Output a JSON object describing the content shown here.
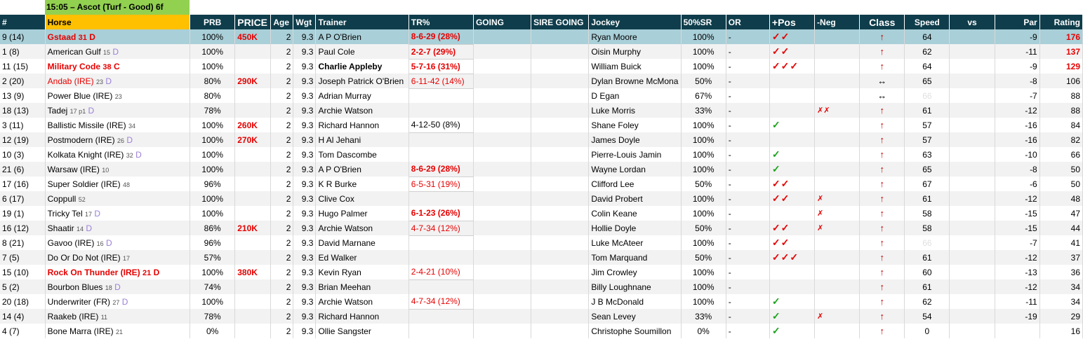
{
  "race_title": "15:05 – Ascot (Turf - Good) 6f",
  "headers": [
    "#",
    "Horse",
    "PRB",
    "PRICE",
    "Age",
    "Wgt",
    "Trainer",
    "TR%",
    "GOING",
    "SIRE GOING",
    "Jockey",
    "50%SR",
    "OR",
    "+Pos",
    "-Neg",
    "Class",
    "Speed",
    "vs",
    "Par",
    "Rating"
  ],
  "rows": [
    {
      "num": "9 (14)",
      "horse": "Gstaad",
      "days": "31",
      "d": "D",
      "horse_red": true,
      "prb": "100%",
      "price": "450K",
      "age": "2",
      "wgt": "9.3",
      "trainer": "A P O'Brien",
      "trainer_bold": false,
      "tr": "8-6-29 (28%)",
      "tr_style": "red",
      "jockey": "Ryan Moore",
      "sr": "100%",
      "or": "-",
      "pos": "✓✓",
      "pos_style": "ticks",
      "neg": "",
      "class": "↑",
      "speed": "64",
      "speed_muted": false,
      "par": "-9",
      "rating": "176",
      "rating_red": true,
      "hl": true
    },
    {
      "num": "1 (8)",
      "horse": "American Gulf",
      "days": "15",
      "d": "D",
      "horse_red": false,
      "prb": "100%",
      "price": "",
      "age": "2",
      "wgt": "9.3",
      "trainer": "Paul Cole",
      "trainer_bold": false,
      "tr": "2-2-7 (29%)",
      "tr_style": "red",
      "jockey": "Oisin Murphy",
      "sr": "100%",
      "or": "-",
      "pos": "✓✓",
      "pos_style": "ticks",
      "neg": "",
      "class": "↑",
      "speed": "62",
      "speed_muted": false,
      "par": "-11",
      "rating": "137",
      "rating_red": true,
      "hl": false
    },
    {
      "num": "11 (15)",
      "horse": "Military Code",
      "days": "38",
      "d": "C",
      "horse_red": true,
      "prb": "100%",
      "price": "",
      "age": "2",
      "wgt": "9.3",
      "trainer": "Charlie Appleby",
      "trainer_bold": true,
      "tr": "5-7-16 (31%)",
      "tr_style": "red",
      "jockey": "William Buick",
      "sr": "100%",
      "or": "-",
      "pos": "✓✓✓",
      "pos_style": "ticks",
      "neg": "",
      "class": "↑",
      "speed": "64",
      "speed_muted": false,
      "par": "-9",
      "rating": "129",
      "rating_red": true,
      "hl": false
    },
    {
      "num": "2 (20)",
      "horse": "Andab (IRE)",
      "days": "23",
      "d": "D",
      "horse_red": false,
      "horse_redn": true,
      "prb": "80%",
      "price": "290K",
      "age": "2",
      "wgt": "9.3",
      "trainer": "Joseph Patrick O'Brien",
      "trainer_bold": false,
      "tr": "6-11-42 (14%)",
      "tr_style": "redn",
      "jockey": "Dylan Browne McMona",
      "sr": "50%",
      "or": "-",
      "pos": "",
      "pos_style": "",
      "neg": "",
      "class": "↔",
      "speed": "65",
      "speed_muted": false,
      "par": "-8",
      "rating": "106",
      "rating_red": false,
      "hl": false
    },
    {
      "num": "13 (9)",
      "horse": "Power Blue (IRE)",
      "days": "23",
      "d": "",
      "horse_red": false,
      "prb": "80%",
      "price": "",
      "age": "2",
      "wgt": "9.3",
      "trainer": "Adrian Murray",
      "trainer_bold": false,
      "tr": "",
      "tr_style": "",
      "jockey": "D Egan",
      "sr": "67%",
      "or": "-",
      "pos": "",
      "pos_style": "",
      "neg": "",
      "class": "↔",
      "speed": "66",
      "speed_muted": true,
      "par": "-7",
      "rating": "88",
      "rating_red": false,
      "hl": false
    },
    {
      "num": "18 (13)",
      "horse": "Tadej",
      "days": "17 p1",
      "d": "D",
      "horse_red": false,
      "prb": "78%",
      "price": "",
      "age": "2",
      "wgt": "9.3",
      "trainer": "Archie Watson",
      "trainer_bold": false,
      "tr": "",
      "tr_style": "",
      "jockey": "Luke Morris",
      "sr": "33%",
      "or": "-",
      "pos": "",
      "pos_style": "",
      "neg": "✗✗",
      "class": "↑",
      "speed": "61",
      "speed_muted": false,
      "par": "-12",
      "rating": "88",
      "rating_red": false,
      "hl": false
    },
    {
      "num": "3 (11)",
      "horse": "Ballistic Missile (IRE)",
      "days": "34",
      "d": "",
      "horse_red": false,
      "prb": "100%",
      "price": "260K",
      "age": "2",
      "wgt": "9.3",
      "trainer": "Richard Hannon",
      "trainer_bold": false,
      "tr": "4-12-50 (8%)",
      "tr_style": "plain",
      "jockey": "Shane Foley",
      "sr": "100%",
      "or": "-",
      "pos": "✓",
      "pos_style": "gtick",
      "neg": "",
      "class": "↑",
      "speed": "57",
      "speed_muted": false,
      "par": "-16",
      "rating": "84",
      "rating_red": false,
      "hl": false
    },
    {
      "num": "12 (19)",
      "horse": "Postmodern (IRE)",
      "days": "26",
      "d": "D",
      "horse_red": false,
      "prb": "100%",
      "price": "270K",
      "age": "2",
      "wgt": "9.3",
      "trainer": "H Al Jehani",
      "trainer_bold": false,
      "tr": "",
      "tr_style": "",
      "jockey": "James Doyle",
      "sr": "100%",
      "or": "-",
      "pos": "",
      "pos_style": "",
      "neg": "",
      "class": "↑",
      "speed": "57",
      "speed_muted": false,
      "par": "-16",
      "rating": "82",
      "rating_red": false,
      "hl": false
    },
    {
      "num": "10 (3)",
      "horse": "Kolkata Knight (IRE)",
      "days": "32",
      "d": "D",
      "horse_red": false,
      "prb": "100%",
      "price": "",
      "age": "2",
      "wgt": "9.3",
      "trainer": "Tom Dascombe",
      "trainer_bold": false,
      "tr": "",
      "tr_style": "",
      "jockey": "Pierre-Louis Jamin",
      "sr": "100%",
      "or": "-",
      "pos": "✓",
      "pos_style": "gtick",
      "neg": "",
      "class": "↑",
      "speed": "63",
      "speed_muted": false,
      "par": "-10",
      "rating": "66",
      "rating_red": false,
      "hl": false
    },
    {
      "num": "21 (6)",
      "horse": "Warsaw (IRE)",
      "days": "10",
      "d": "",
      "horse_red": false,
      "prb": "100%",
      "price": "",
      "age": "2",
      "wgt": "9.3",
      "trainer": "A P O'Brien",
      "trainer_bold": false,
      "tr": "8-6-29 (28%)",
      "tr_style": "red",
      "jockey": "Wayne Lordan",
      "sr": "100%",
      "or": "-",
      "pos": "✓",
      "pos_style": "gtick",
      "neg": "",
      "class": "↑",
      "speed": "65",
      "speed_muted": false,
      "par": "-8",
      "rating": "50",
      "rating_red": false,
      "hl": false
    },
    {
      "num": "17 (16)",
      "horse": "Super Soldier (IRE)",
      "days": "48",
      "d": "",
      "horse_red": false,
      "prb": "96%",
      "price": "",
      "age": "2",
      "wgt": "9.3",
      "trainer": "K R Burke",
      "trainer_bold": false,
      "tr": "6-5-31 (19%)",
      "tr_style": "redn",
      "jockey": "Clifford Lee",
      "sr": "50%",
      "or": "-",
      "pos": "✓✓",
      "pos_style": "ticks",
      "neg": "",
      "class": "↑",
      "speed": "67",
      "speed_muted": false,
      "par": "-6",
      "rating": "50",
      "rating_red": false,
      "hl": false
    },
    {
      "num": "6 (17)",
      "horse": "Coppull",
      "days": "52",
      "d": "",
      "horse_red": false,
      "prb": "100%",
      "price": "",
      "age": "2",
      "wgt": "9.3",
      "trainer": "Clive Cox",
      "trainer_bold": false,
      "tr": "",
      "tr_style": "",
      "jockey": "David Probert",
      "sr": "100%",
      "or": "-",
      "pos": "✓✓",
      "pos_style": "ticks",
      "neg": "✗",
      "class": "↑",
      "speed": "61",
      "speed_muted": false,
      "par": "-12",
      "rating": "48",
      "rating_red": false,
      "hl": false
    },
    {
      "num": "19 (1)",
      "horse": "Tricky Tel",
      "days": "17",
      "d": "D",
      "horse_red": false,
      "prb": "100%",
      "price": "",
      "age": "2",
      "wgt": "9.3",
      "trainer": "Hugo Palmer",
      "trainer_bold": false,
      "tr": "6-1-23 (26%)",
      "tr_style": "red",
      "jockey": "Colin Keane",
      "sr": "100%",
      "or": "-",
      "pos": "",
      "pos_style": "",
      "neg": "✗",
      "class": "↑",
      "speed": "58",
      "speed_muted": false,
      "par": "-15",
      "rating": "47",
      "rating_red": false,
      "hl": false
    },
    {
      "num": "16 (12)",
      "horse": "Shaatir",
      "days": "14",
      "d": "D",
      "horse_red": false,
      "prb": "86%",
      "price": "210K",
      "age": "2",
      "wgt": "9.3",
      "trainer": "Archie Watson",
      "trainer_bold": false,
      "tr": "4-7-34 (12%)",
      "tr_style": "redn",
      "jockey": "Hollie Doyle",
      "sr": "50%",
      "or": "-",
      "pos": "✓✓",
      "pos_style": "ticks",
      "neg": "✗",
      "class": "↑",
      "speed": "58",
      "speed_muted": false,
      "par": "-15",
      "rating": "44",
      "rating_red": false,
      "hl": false
    },
    {
      "num": "8 (21)",
      "horse": "Gavoo (IRE)",
      "days": "16",
      "d": "D",
      "horse_red": false,
      "prb": "96%",
      "price": "",
      "age": "2",
      "wgt": "9.3",
      "trainer": "David Marnane",
      "trainer_bold": false,
      "tr": "",
      "tr_style": "",
      "jockey": "Luke McAteer",
      "sr": "100%",
      "or": "-",
      "pos": "✓✓",
      "pos_style": "ticks",
      "neg": "",
      "class": "↑",
      "speed": "66",
      "speed_muted": true,
      "par": "-7",
      "rating": "41",
      "rating_red": false,
      "hl": false
    },
    {
      "num": "7 (5)",
      "horse": "Do Or Do Not (IRE)",
      "days": "17",
      "d": "",
      "horse_red": false,
      "prb": "57%",
      "price": "",
      "age": "2",
      "wgt": "9.3",
      "trainer": "Ed Walker",
      "trainer_bold": false,
      "tr": "",
      "tr_style": "",
      "jockey": "Tom Marquand",
      "sr": "50%",
      "or": "-",
      "pos": "✓✓✓",
      "pos_style": "ticks",
      "neg": "",
      "class": "↑",
      "speed": "61",
      "speed_muted": false,
      "par": "-12",
      "rating": "37",
      "rating_red": false,
      "hl": false
    },
    {
      "num": "15 (10)",
      "horse": "Rock On Thunder (IRE)",
      "days": "21",
      "d": "D",
      "horse_red": true,
      "prb": "100%",
      "price": "380K",
      "age": "2",
      "wgt": "9.3",
      "trainer": "Kevin Ryan",
      "trainer_bold": false,
      "tr": "2-4-21 (10%)",
      "tr_style": "redn",
      "jockey": "Jim Crowley",
      "sr": "100%",
      "or": "-",
      "pos": "",
      "pos_style": "",
      "neg": "",
      "class": "↑",
      "speed": "60",
      "speed_muted": false,
      "par": "-13",
      "rating": "36",
      "rating_red": false,
      "hl": false
    },
    {
      "num": "5 (2)",
      "horse": "Bourbon Blues",
      "days": "18",
      "d": "D",
      "horse_red": false,
      "prb": "74%",
      "price": "",
      "age": "2",
      "wgt": "9.3",
      "trainer": "Brian Meehan",
      "trainer_bold": false,
      "tr": "",
      "tr_style": "",
      "jockey": "Billy Loughnane",
      "sr": "100%",
      "or": "-",
      "pos": "",
      "pos_style": "",
      "neg": "",
      "class": "↑",
      "speed": "61",
      "speed_muted": false,
      "par": "-12",
      "rating": "34",
      "rating_red": false,
      "hl": false
    },
    {
      "num": "20 (18)",
      "horse": "Underwriter (FR)",
      "days": "27",
      "d": "D",
      "horse_red": false,
      "prb": "100%",
      "price": "",
      "age": "2",
      "wgt": "9.3",
      "trainer": "Archie Watson",
      "trainer_bold": false,
      "tr": "4-7-34 (12%)",
      "tr_style": "redn",
      "jockey": "J B McDonald",
      "sr": "100%",
      "or": "-",
      "pos": "✓",
      "pos_style": "gtick",
      "neg": "",
      "class": "↑",
      "speed": "62",
      "speed_muted": false,
      "par": "-11",
      "rating": "34",
      "rating_red": false,
      "hl": false
    },
    {
      "num": "14 (4)",
      "horse": "Raakeb (IRE)",
      "days": "11",
      "d": "",
      "horse_red": false,
      "prb": "78%",
      "price": "",
      "age": "2",
      "wgt": "9.3",
      "trainer": "Richard Hannon",
      "trainer_bold": false,
      "tr": "",
      "tr_style": "",
      "jockey": "Sean Levey",
      "sr": "33%",
      "or": "-",
      "pos": "✓",
      "pos_style": "gtick",
      "neg": "✗",
      "class": "↑",
      "speed": "54",
      "speed_muted": false,
      "par": "-19",
      "rating": "29",
      "rating_red": false,
      "hl": false
    },
    {
      "num": "4 (7)",
      "horse": "Bone Marra (IRE)",
      "days": "21",
      "d": "",
      "horse_red": false,
      "prb": "0%",
      "price": "",
      "age": "2",
      "wgt": "9.3",
      "trainer": "Ollie Sangster",
      "trainer_bold": false,
      "tr": "",
      "tr_style": "",
      "jockey": "Christophe Soumillon",
      "sr": "0%",
      "or": "-",
      "pos": "✓",
      "pos_style": "gtick",
      "neg": "",
      "class": "↑",
      "speed": "0",
      "speed_muted": false,
      "par": "",
      "rating": "16",
      "rating_red": false,
      "hl": false
    }
  ],
  "colors": {
    "header_bg": "#0f3d4b",
    "title_bg": "#92d050",
    "horse_header_bg": "#ffc000",
    "highlight_row": "#a9cfd8",
    "red": "#e60000",
    "green_tick": "#1aa31a"
  }
}
